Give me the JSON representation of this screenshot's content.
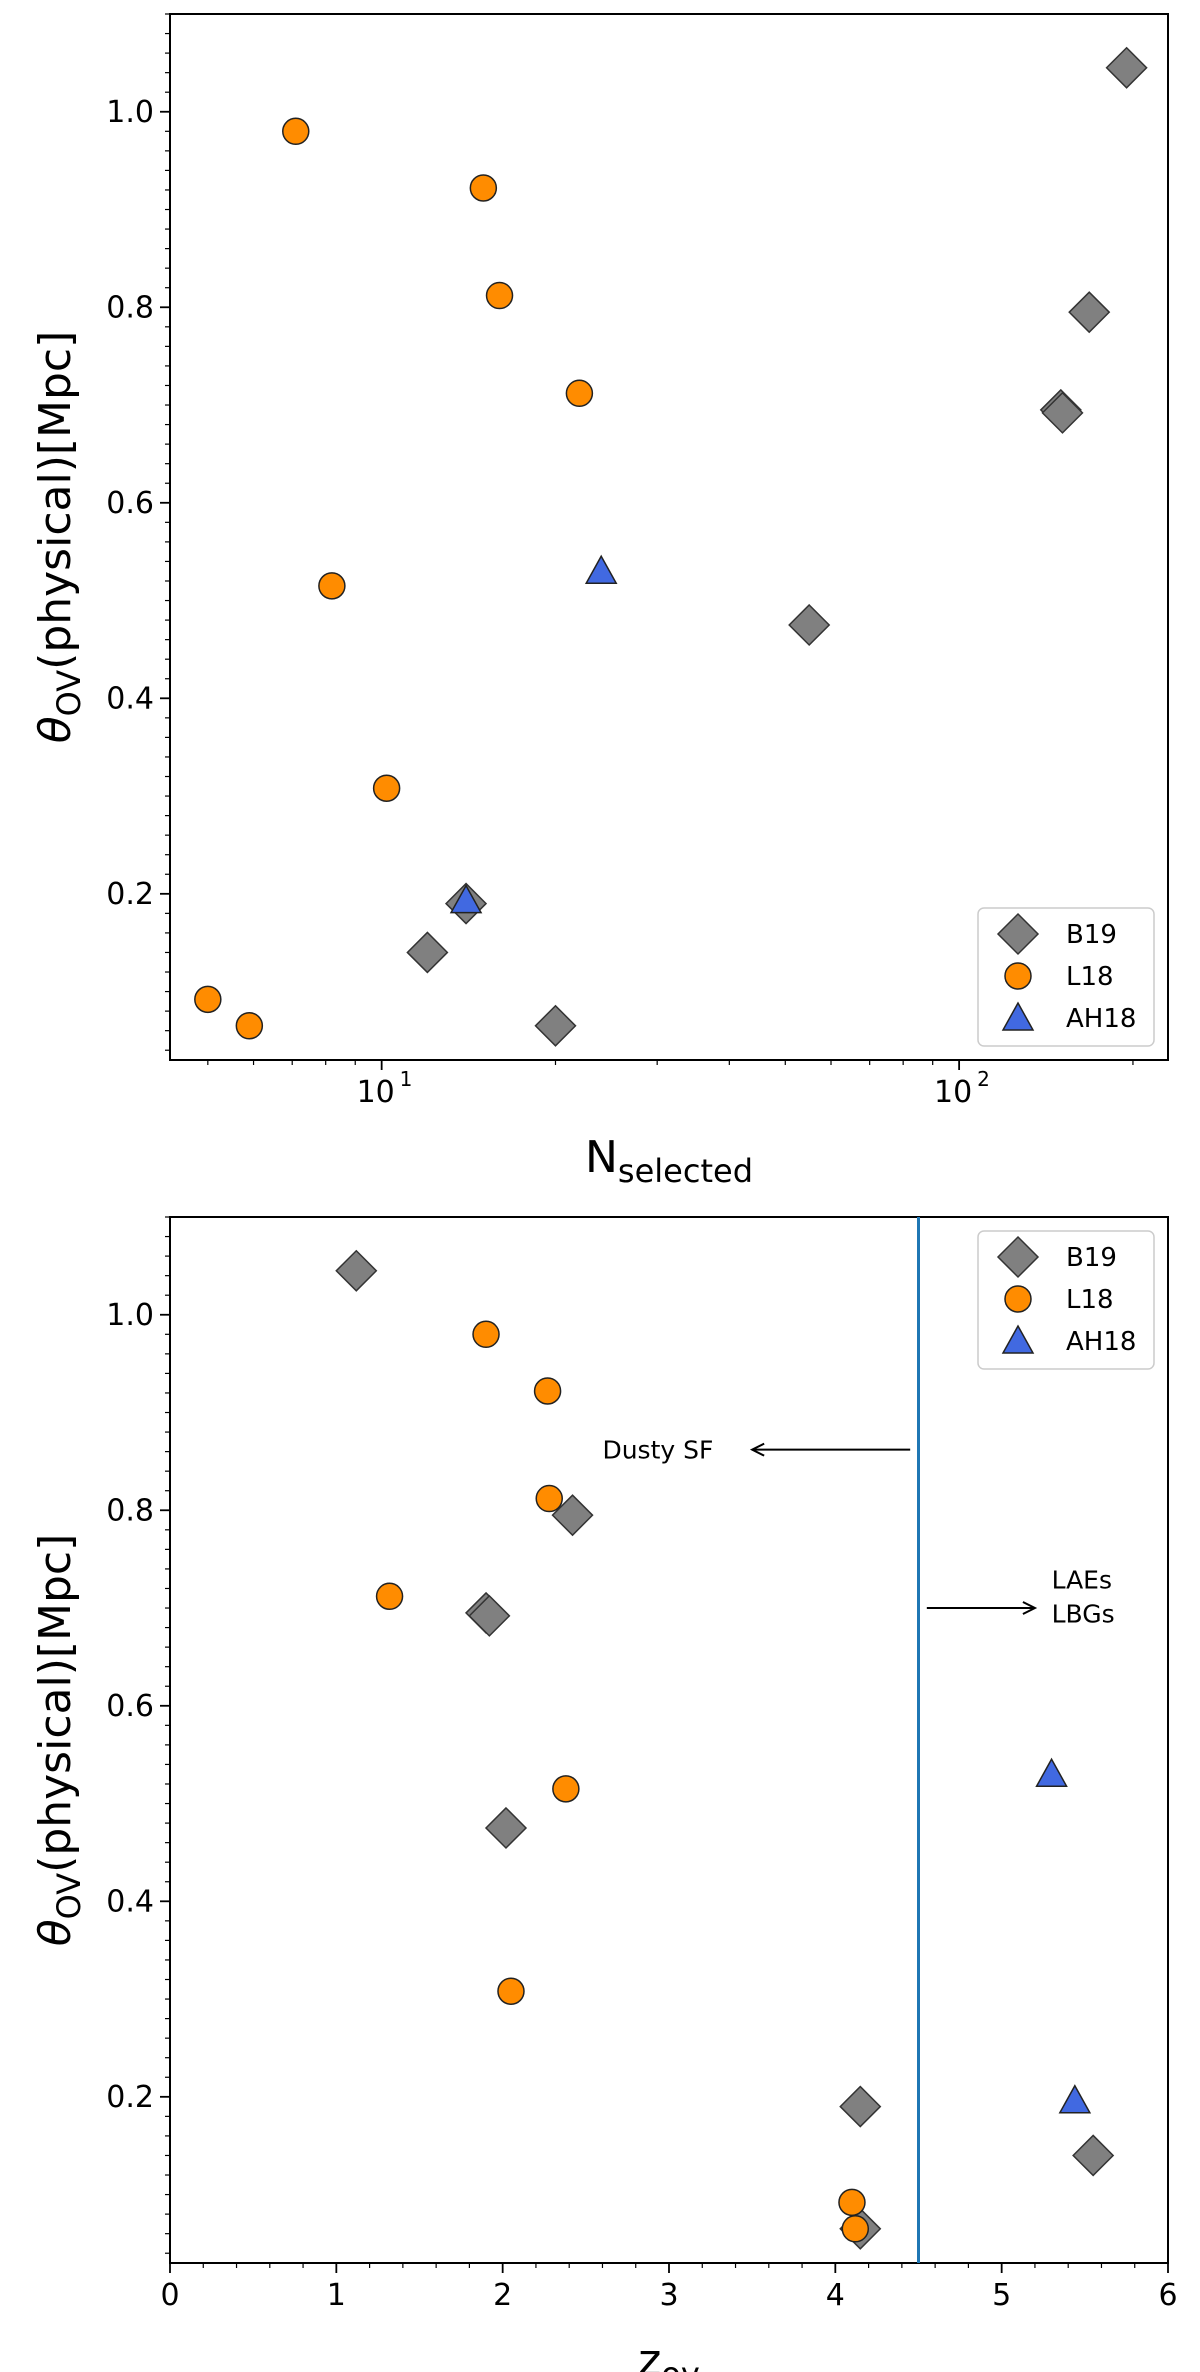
{
  "colors": {
    "B19": "#808080",
    "L18": "#ff8c00",
    "AH18": "#4169e1",
    "vline": "#1f77b4",
    "edge": "#333333"
  },
  "chart_data": [
    {
      "type": "scatter",
      "xscale": "log",
      "xlim": [
        4.3,
        230
      ],
      "ylim": [
        0.03,
        1.1
      ],
      "yticks": [
        0.2,
        0.4,
        0.6,
        0.8,
        1.0
      ],
      "ytick_labels": [
        "0.2",
        "0.4",
        "0.6",
        "0.8",
        "1.0"
      ],
      "xticks": [
        10,
        100
      ],
      "xtick_labels": [
        "10",
        "10",
        "1",
        "2"
      ],
      "xlabel": {
        "main": "N",
        "sub": "selected"
      },
      "ylabel": {
        "greek": "θ",
        "sub": "OV",
        "rest": "(physical)[Mpc]"
      },
      "legend": {
        "position": "lower-right",
        "entries": [
          {
            "name": "B19",
            "marker": "diamond"
          },
          {
            "name": "L18",
            "marker": "circle"
          },
          {
            "name": "AH18",
            "marker": "triangle"
          }
        ]
      },
      "series": [
        {
          "name": "B19",
          "marker": "diamond",
          "points": [
            [
              195,
              1.045
            ],
            [
              168,
              0.795
            ],
            [
              150,
              0.695
            ],
            [
              151,
              0.692
            ],
            [
              55,
              0.475
            ],
            [
              14,
              0.19
            ],
            [
              12,
              0.14
            ],
            [
              20,
              0.065
            ]
          ]
        },
        {
          "name": "L18",
          "marker": "circle",
          "points": [
            [
              7.1,
              0.98
            ],
            [
              15,
              0.922
            ],
            [
              16,
              0.812
            ],
            [
              22,
              0.712
            ],
            [
              8.2,
              0.515
            ],
            [
              10.2,
              0.308
            ],
            [
              5.0,
              0.092
            ],
            [
              5.9,
              0.065
            ]
          ]
        },
        {
          "name": "AH18",
          "marker": "triangle",
          "points": [
            [
              24,
              0.53
            ],
            [
              14,
              0.193
            ]
          ]
        }
      ]
    },
    {
      "type": "scatter",
      "xscale": "linear",
      "xlim": [
        0,
        6
      ],
      "ylim": [
        0.03,
        1.1
      ],
      "yticks": [
        0.2,
        0.4,
        0.6,
        0.8,
        1.0
      ],
      "ytick_labels": [
        "0.2",
        "0.4",
        "0.6",
        "0.8",
        "1.0"
      ],
      "xticks": [
        0,
        1,
        2,
        3,
        4,
        5,
        6
      ],
      "xtick_labels": [
        "0",
        "1",
        "2",
        "3",
        "4",
        "5",
        "6"
      ],
      "xlabel": {
        "main": "z",
        "sub": "ov"
      },
      "ylabel": {
        "greek": "θ",
        "sub": "OV",
        "rest": "(physical)[Mpc]"
      },
      "vline": 4.5,
      "annotations": [
        {
          "text": "Dusty SF",
          "arrow": "left",
          "from": [
            4.45,
            0.862
          ],
          "to": [
            3.5,
            0.862
          ],
          "text_x": 2.6
        },
        {
          "text": "LAEs",
          "arrow": "right",
          "from": [
            4.55,
            0.7
          ],
          "to": [
            5.2,
            0.7
          ],
          "text_x": 5.3,
          "text_y": 0.72
        },
        {
          "text": "LBGs",
          "text_x": 5.3,
          "text_y": 0.685
        }
      ],
      "legend": {
        "position": "upper-right",
        "entries": [
          {
            "name": "B19",
            "marker": "diamond"
          },
          {
            "name": "L18",
            "marker": "circle"
          },
          {
            "name": "AH18",
            "marker": "triangle"
          }
        ]
      },
      "series": [
        {
          "name": "B19",
          "marker": "diamond",
          "points": [
            [
              1.12,
              1.045
            ],
            [
              2.42,
              0.795
            ],
            [
              1.9,
              0.695
            ],
            [
              1.92,
              0.692
            ],
            [
              2.02,
              0.475
            ],
            [
              4.15,
              0.19
            ],
            [
              5.55,
              0.14
            ],
            [
              4.15,
              0.065
            ]
          ]
        },
        {
          "name": "L18",
          "marker": "circle",
          "points": [
            [
              1.9,
              0.98
            ],
            [
              2.27,
              0.922
            ],
            [
              2.28,
              0.812
            ],
            [
              1.32,
              0.712
            ],
            [
              2.38,
              0.515
            ],
            [
              2.05,
              0.308
            ],
            [
              4.1,
              0.092
            ],
            [
              4.12,
              0.065
            ]
          ]
        },
        {
          "name": "AH18",
          "marker": "triangle",
          "points": [
            [
              5.3,
              0.53
            ],
            [
              5.44,
              0.196
            ]
          ]
        }
      ]
    }
  ]
}
